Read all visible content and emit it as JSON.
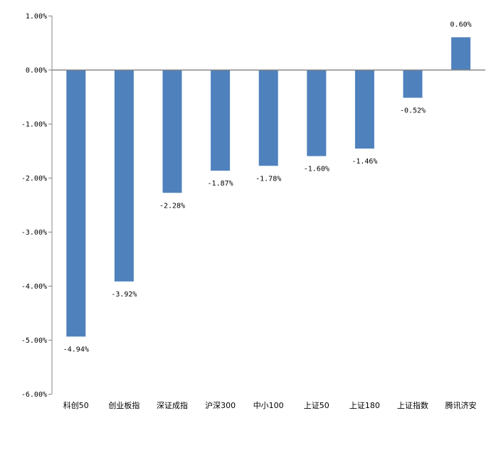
{
  "chart_data": {
    "type": "bar",
    "title": "",
    "xlabel": "",
    "ylabel": "",
    "categories": [
      "科创50",
      "创业板指",
      "深证成指",
      "沪深300",
      "中小100",
      "上证50",
      "上证180",
      "上证指数",
      "腾讯济安"
    ],
    "values": [
      -4.94,
      -3.92,
      -2.28,
      -1.87,
      -1.78,
      -1.6,
      -1.46,
      -0.52,
      0.6
    ],
    "data_labels": [
      "-4.94%",
      "-3.92%",
      "-2.28%",
      "-1.87%",
      "-1.78%",
      "-1.60%",
      "-1.46%",
      "-0.52%",
      "0.60%"
    ],
    "ylim": [
      -6,
      1
    ],
    "yticks": [
      1,
      0,
      -1,
      -2,
      -3,
      -4,
      -5,
      -6
    ],
    "ytick_labels": [
      "1.00%",
      "0.00%",
      "-1.00%",
      "-2.00%",
      "-3.00%",
      "-4.00%",
      "-5.00%",
      "-6.00%"
    ],
    "grid": false,
    "legend": "none",
    "bar_color": "#4f81bd",
    "axis_color": "#868686"
  }
}
